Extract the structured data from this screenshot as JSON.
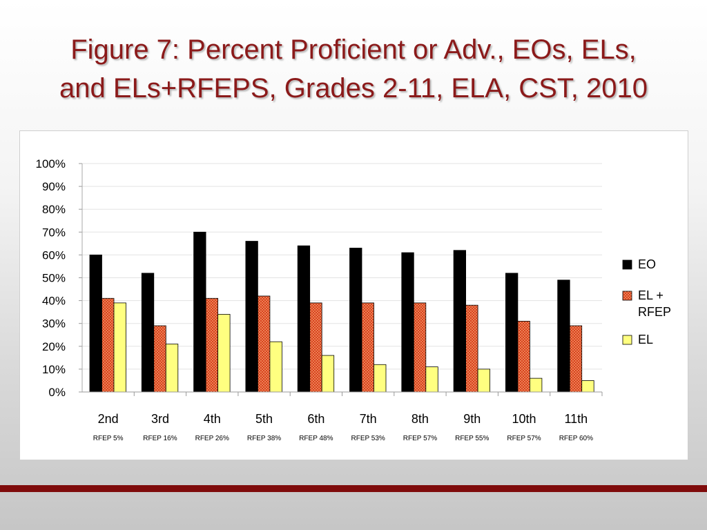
{
  "slide": {
    "title_line1": "Figure 7: Percent Proficient or Adv., EOs, ELs,",
    "title_line2": "and ELs+RFEPS, Grades 2-11, ELA, CST, 2010"
  },
  "colors": {
    "title": "#8b1a1a",
    "footer_bar": "#7f0b0b",
    "eo": "#000000",
    "el_rfep": "#d9401e",
    "el": "#ffff80"
  },
  "chart_data": {
    "type": "bar",
    "categories": [
      "2nd",
      "3rd",
      "4th",
      "5th",
      "6th",
      "7th",
      "8th",
      "9th",
      "10th",
      "11th"
    ],
    "sublabels": [
      "RFEP 5%",
      "RFEP 16%",
      "RFEP 26%",
      "RFEP 38%",
      "RFEP 48%",
      "RFEP 53%",
      "RFEP 57%",
      "RFEP 55%",
      "RFEP 57%",
      "RFEP 60%"
    ],
    "series": [
      {
        "name": "EO",
        "color": "#000000",
        "pattern": "solid",
        "values": [
          60,
          52,
          70,
          66,
          64,
          63,
          61,
          62,
          52,
          49
        ]
      },
      {
        "name": "EL + RFEP",
        "color": "#d9401e",
        "pattern": "dotted",
        "values": [
          41,
          29,
          41,
          42,
          39,
          39,
          39,
          38,
          31,
          29
        ]
      },
      {
        "name": "EL",
        "color": "#ffff80",
        "pattern": "solid",
        "values": [
          39,
          21,
          34,
          22,
          16,
          12,
          11,
          10,
          6,
          5
        ]
      }
    ],
    "yticks": [
      "0%",
      "10%",
      "20%",
      "30%",
      "40%",
      "50%",
      "60%",
      "70%",
      "80%",
      "90%",
      "100%"
    ],
    "ylim": [
      0,
      100
    ],
    "grid": true,
    "legend_position": "right"
  }
}
